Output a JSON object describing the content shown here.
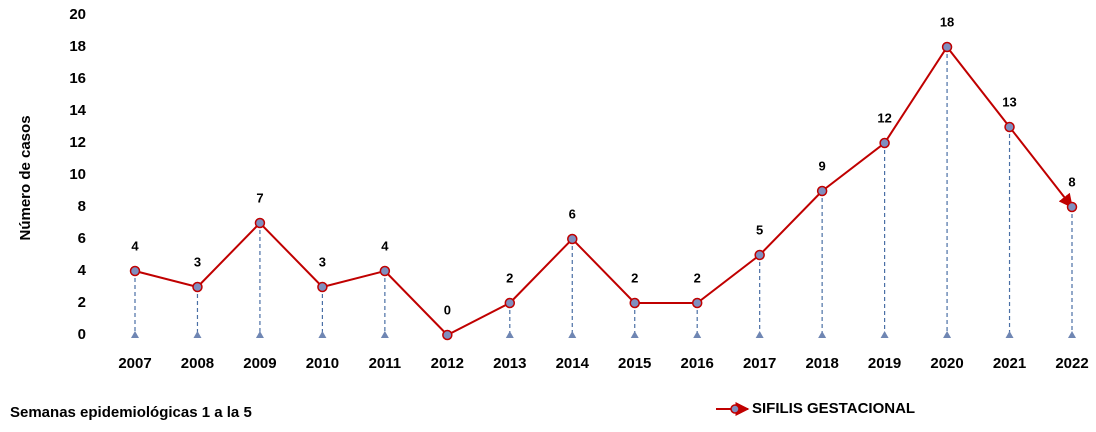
{
  "chart_data": {
    "type": "line",
    "categories": [
      "2007",
      "2008",
      "2009",
      "2010",
      "2011",
      "2012",
      "2013",
      "2014",
      "2015",
      "2016",
      "2017",
      "2018",
      "2019",
      "2020",
      "2021",
      "2022"
    ],
    "series": [
      {
        "name": "SIFILIS GESTACIONAL",
        "color": "#c00000",
        "marker_color": "#7f8fbf",
        "values": [
          4,
          3,
          7,
          3,
          4,
          0,
          2,
          6,
          2,
          2,
          5,
          9,
          12,
          18,
          13,
          8
        ]
      }
    ],
    "ylabel": "Número de casos",
    "annotation": "Semanas epidemiológicas 1 a la 5",
    "ylim": [
      0,
      20
    ],
    "yticks": [
      0,
      2,
      4,
      6,
      8,
      10,
      12,
      14,
      16,
      18,
      20
    ],
    "grid": false,
    "legend": "bottom"
  }
}
